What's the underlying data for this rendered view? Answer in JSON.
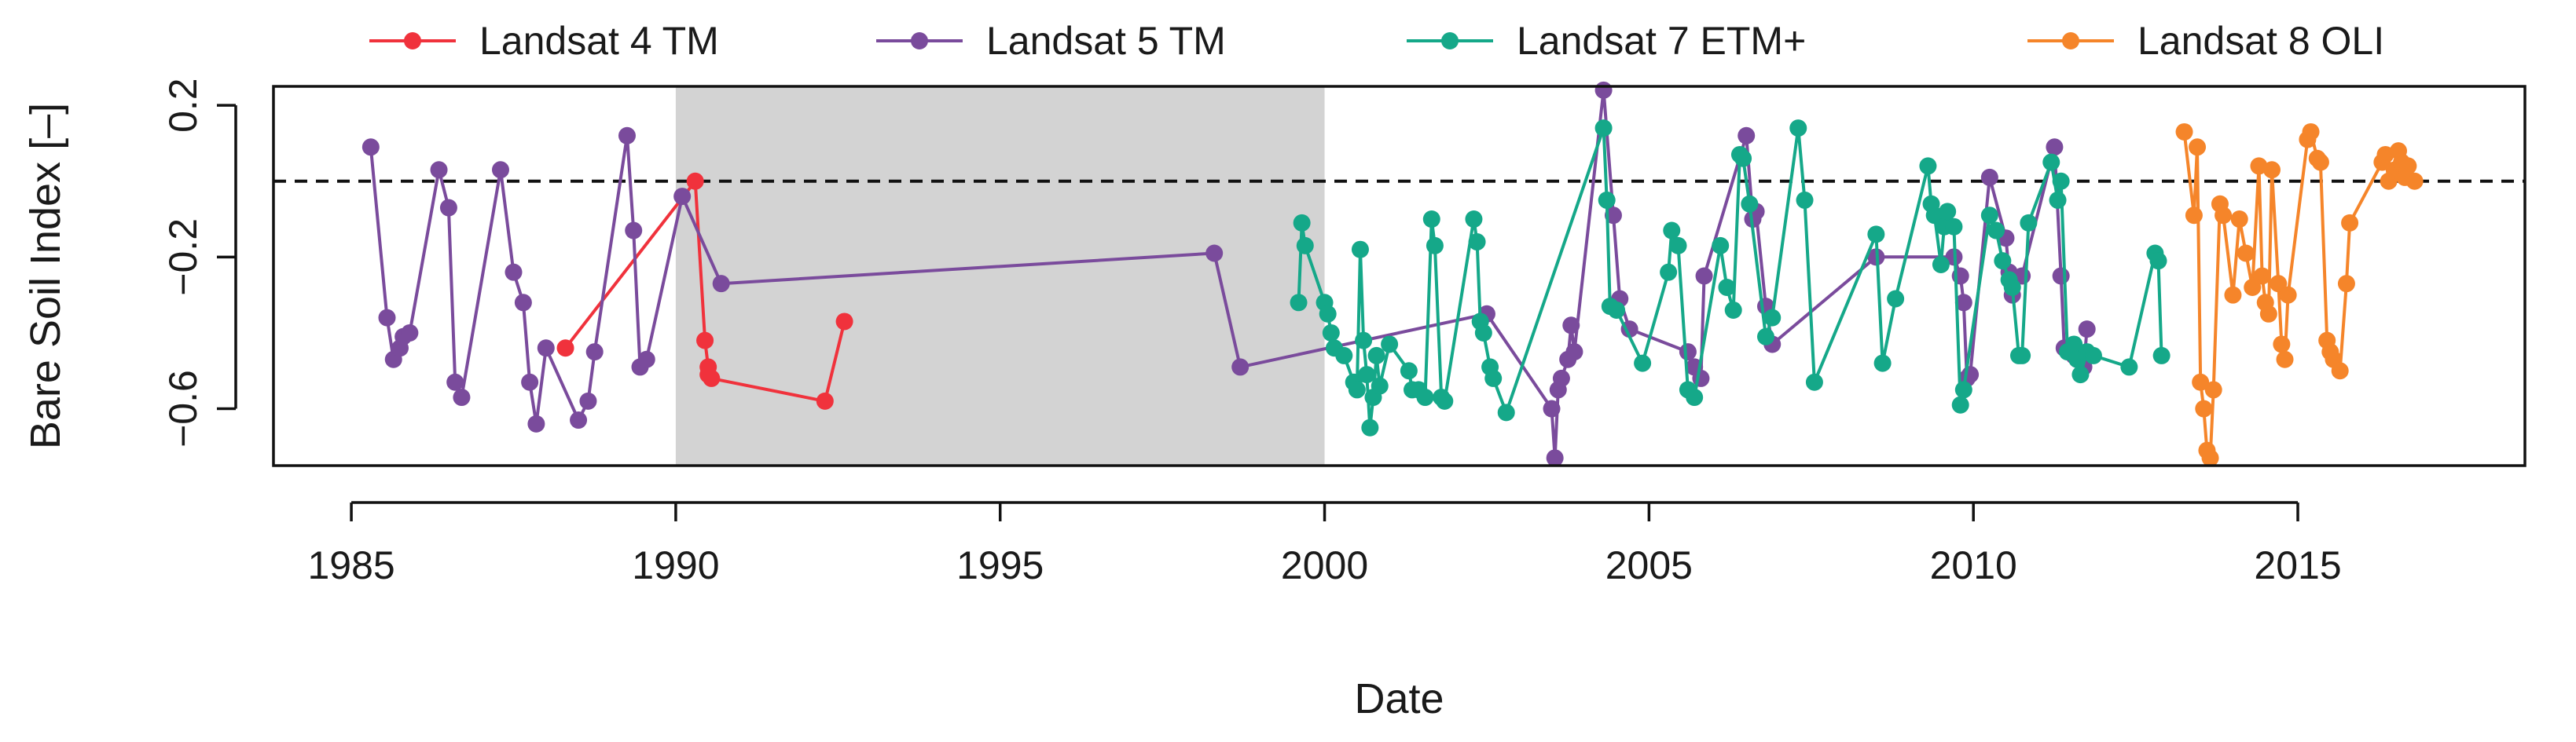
{
  "chart_data": {
    "type": "line",
    "title": "",
    "xlabel": "Date",
    "ylabel": "Bare Soil Index [–]",
    "xlim": [
      1983.8,
      2018.5
    ],
    "ylim": [
      -0.75,
      0.25
    ],
    "xticks": [
      1985,
      1990,
      1995,
      2000,
      2005,
      2010,
      2015
    ],
    "xtick_labels": [
      "1985",
      "1990",
      "1995",
      "2000",
      "2005",
      "2010",
      "2015"
    ],
    "yticks": [
      0.2,
      -0.2,
      -0.6
    ],
    "ytick_labels": [
      "0.2",
      "−0.2",
      "−0.6"
    ],
    "reference_line": {
      "y": 0.0,
      "style": "dashed"
    },
    "shaded_region": {
      "x_start": 1990.0,
      "x_end": 2000.0,
      "color": "#d3d3d3"
    },
    "legend_position": "top",
    "series": [
      {
        "name": "Landsat 4 TM",
        "color": "#f0323c",
        "x": [
          1988.3,
          1990.3,
          1990.45,
          1990.5,
          1990.5,
          1990.55,
          1992.3,
          1992.6
        ],
        "y": [
          -0.44,
          0.0,
          -0.42,
          -0.49,
          -0.51,
          -0.52,
          -0.58,
          -0.37
        ]
      },
      {
        "name": "Landsat 5 TM",
        "color": "#7a4b9c",
        "x": [
          1985.3,
          1985.55,
          1985.65,
          1985.75,
          1985.8,
          1985.9,
          1986.35,
          1986.5,
          1986.6,
          1986.7,
          1987.3,
          1987.5,
          1987.65,
          1987.75,
          1987.85,
          1988.0,
          1988.5,
          1988.65,
          1988.75,
          1989.25,
          1989.35,
          1989.45,
          1989.55,
          1990.1,
          1990.7,
          1998.3,
          1998.7,
          2002.5,
          2003.5,
          2003.55,
          2003.6,
          2003.65,
          2003.75,
          2003.8,
          2003.85,
          2004.3,
          2004.45,
          2004.55,
          2004.7,
          2005.6,
          2005.7,
          2005.8,
          2005.85,
          2006.5,
          2006.6,
          2006.65,
          2006.8,
          2006.9,
          2008.5,
          2009.7,
          2009.8,
          2009.85,
          2009.9,
          2009.95,
          2010.25,
          2010.5,
          2010.55,
          2010.6,
          2010.75,
          2011.25,
          2011.35,
          2011.4,
          2011.5,
          2011.55,
          2011.6,
          2011.7,
          2011.75
        ],
        "y": [
          0.09,
          -0.36,
          -0.47,
          -0.44,
          -0.41,
          -0.4,
          0.03,
          -0.07,
          -0.53,
          -0.57,
          0.03,
          -0.24,
          -0.32,
          -0.53,
          -0.64,
          -0.44,
          -0.63,
          -0.58,
          -0.45,
          0.12,
          -0.13,
          -0.49,
          -0.47,
          -0.04,
          -0.27,
          -0.19,
          -0.49,
          -0.35,
          -0.6,
          -0.73,
          -0.55,
          -0.52,
          -0.47,
          -0.38,
          -0.45,
          0.24,
          -0.09,
          -0.31,
          -0.39,
          -0.45,
          -0.49,
          -0.52,
          -0.25,
          0.12,
          -0.1,
          -0.08,
          -0.33,
          -0.43,
          -0.2,
          -0.2,
          -0.25,
          -0.32,
          -0.52,
          -0.51,
          0.01,
          -0.15,
          -0.24,
          -0.3,
          -0.25,
          0.09,
          -0.25,
          -0.44,
          -0.45,
          -0.46,
          -0.47,
          -0.49,
          -0.39
        ]
      },
      {
        "name": "Landsat 7 ETM+",
        "color": "#15a889",
        "x": [
          1999.6,
          1999.65,
          1999.7,
          2000.0,
          2000.05,
          2000.1,
          2000.15,
          2000.3,
          2000.45,
          2000.5,
          2000.55,
          2000.6,
          2000.65,
          2000.7,
          2000.75,
          2000.8,
          2000.85,
          2001.0,
          2001.3,
          2001.35,
          2001.45,
          2001.55,
          2001.65,
          2001.7,
          2001.8,
          2001.85,
          2002.3,
          2002.35,
          2002.4,
          2002.45,
          2002.55,
          2002.6,
          2002.8,
          2004.3,
          2004.35,
          2004.4,
          2004.5,
          2004.9,
          2005.3,
          2005.35,
          2005.45,
          2005.6,
          2005.7,
          2006.1,
          2006.2,
          2006.3,
          2006.4,
          2006.45,
          2006.55,
          2006.8,
          2006.9,
          2007.3,
          2007.4,
          2007.55,
          2008.5,
          2008.6,
          2008.8,
          2009.3,
          2009.35,
          2009.4,
          2009.5,
          2009.55,
          2009.6,
          2009.7,
          2009.8,
          2009.85,
          2010.25,
          2010.35,
          2010.45,
          2010.55,
          2010.6,
          2010.7,
          2010.75,
          2010.85,
          2011.2,
          2011.3,
          2011.35,
          2011.45,
          2011.55,
          2011.6,
          2011.65,
          2011.75,
          2011.85,
          2012.4,
          2012.8,
          2012.85,
          2012.9
        ],
        "y": [
          -0.32,
          -0.11,
          -0.17,
          -0.32,
          -0.35,
          -0.4,
          -0.44,
          -0.46,
          -0.53,
          -0.55,
          -0.18,
          -0.42,
          -0.51,
          -0.65,
          -0.57,
          -0.46,
          -0.54,
          -0.43,
          -0.5,
          -0.55,
          -0.55,
          -0.57,
          -0.1,
          -0.17,
          -0.57,
          -0.58,
          -0.1,
          -0.16,
          -0.37,
          -0.4,
          -0.49,
          -0.52,
          -0.61,
          0.14,
          -0.05,
          -0.33,
          -0.34,
          -0.48,
          -0.24,
          -0.13,
          -0.17,
          -0.55,
          -0.57,
          -0.17,
          -0.28,
          -0.34,
          0.07,
          0.06,
          -0.06,
          -0.41,
          -0.36,
          0.14,
          -0.05,
          -0.53,
          -0.14,
          -0.48,
          -0.31,
          0.04,
          -0.06,
          -0.09,
          -0.22,
          -0.12,
          -0.08,
          -0.12,
          -0.59,
          -0.55,
          -0.09,
          -0.13,
          -0.21,
          -0.26,
          -0.28,
          -0.46,
          -0.46,
          -0.11,
          0.05,
          -0.05,
          0.0,
          -0.45,
          -0.43,
          -0.47,
          -0.51,
          -0.45,
          -0.46,
          -0.49,
          -0.19,
          -0.21,
          -0.46
        ]
      },
      {
        "name": "Landsat 8 OLI",
        "color": "#f5852a",
        "x": [
          2013.25,
          2013.4,
          2013.45,
          2013.5,
          2013.55,
          2013.6,
          2013.65,
          2013.7,
          2013.8,
          2013.85,
          2014.0,
          2014.1,
          2014.2,
          2014.3,
          2014.4,
          2014.45,
          2014.5,
          2014.55,
          2014.6,
          2014.7,
          2014.75,
          2014.8,
          2014.85,
          2015.15,
          2015.2,
          2015.3,
          2015.35,
          2015.45,
          2015.5,
          2015.55,
          2015.65,
          2015.75,
          2015.8,
          2016.3,
          2016.35,
          2016.4,
          2016.5,
          2016.55,
          2016.6,
          2016.65,
          2016.7,
          2016.8
        ],
        "y": [
          0.13,
          -0.09,
          0.09,
          -0.53,
          -0.6,
          -0.71,
          -0.73,
          -0.55,
          -0.06,
          -0.09,
          -0.3,
          -0.1,
          -0.19,
          -0.28,
          0.04,
          -0.25,
          -0.32,
          -0.35,
          0.03,
          -0.27,
          -0.43,
          -0.47,
          -0.3,
          0.11,
          0.13,
          0.06,
          0.05,
          -0.42,
          -0.45,
          -0.47,
          -0.5,
          -0.27,
          -0.11,
          0.05,
          0.07,
          0.0,
          0.03,
          0.08,
          0.05,
          0.01,
          0.04,
          0.0
        ]
      }
    ]
  }
}
